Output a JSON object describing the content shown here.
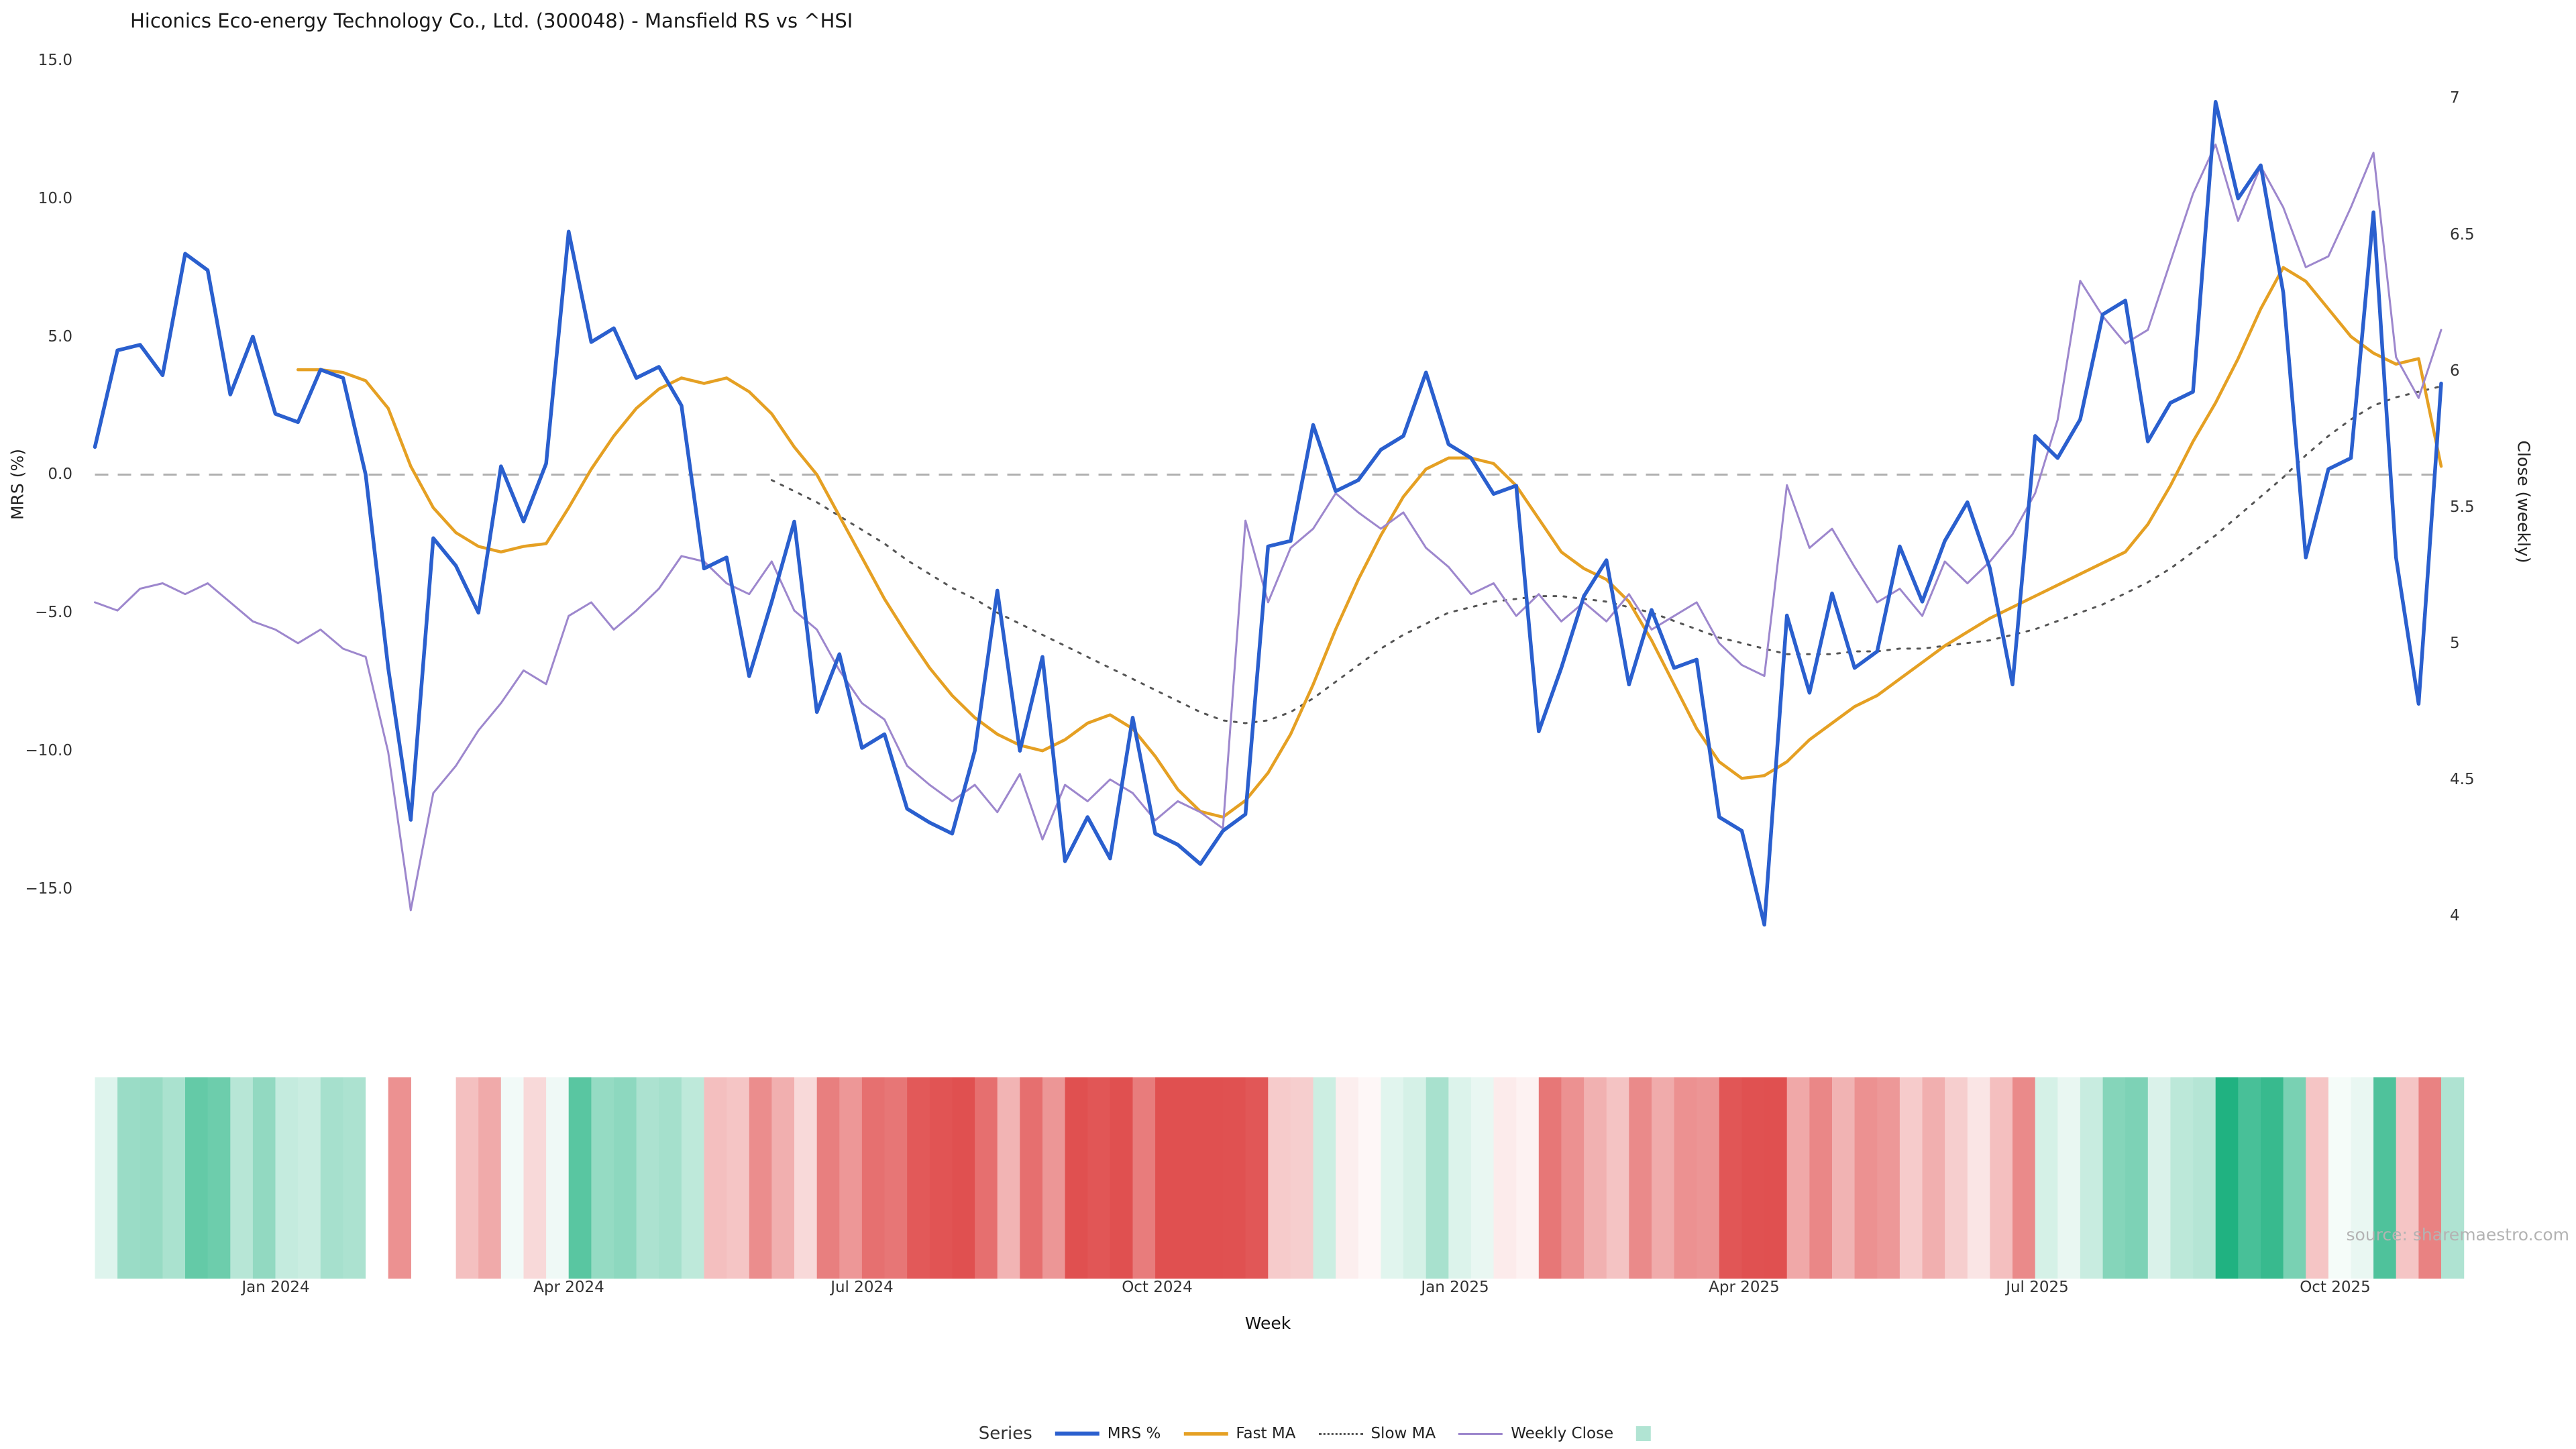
{
  "title": "Hiconics Eco-energy Technology Co., Ltd. (300048) - Mansfield RS vs ^HSI",
  "source": "source: sharemaestro.com",
  "axes": {
    "left_label": "MRS (%)",
    "right_label": "Close (weekly)",
    "x_label": "Week",
    "left_ticks": [
      "15.0",
      "10.0",
      "5.0",
      "0.0",
      "−5.0",
      "−10.0",
      "−15.0"
    ],
    "right_ticks": [
      "7",
      "6.5",
      "6",
      "5.5",
      "5",
      "4.5",
      "4"
    ]
  },
  "legend": {
    "title": "Series",
    "items": [
      {
        "label": "MRS %",
        "color": "#2a5fce",
        "style": "solid",
        "width": 6
      },
      {
        "label": "Fast MA",
        "color": "#e5a023",
        "style": "solid",
        "width": 5
      },
      {
        "label": "Slow MA",
        "color": "#555555",
        "style": "dotted",
        "width": 3
      },
      {
        "label": "Weekly Close",
        "color": "#9d87cd",
        "style": "solid",
        "width": 3
      },
      {
        "label": "",
        "color": "#b1e4d3",
        "style": "square",
        "width": 0
      }
    ]
  },
  "chart_data": {
    "type": "line",
    "title": "Hiconics Eco-energy Technology Co., Ltd. (300048) - Mansfield RS vs ^HSI",
    "xlabel": "Week",
    "x_start_date": "2023-11-06",
    "x_interval": "weekly",
    "n_weeks": 105,
    "x_ticks": [
      {
        "i": 8,
        "label": "Jan 2024"
      },
      {
        "i": 21,
        "label": "Apr 2024"
      },
      {
        "i": 34,
        "label": "Jul 2024"
      },
      {
        "i": 47.1,
        "label": "Oct 2024"
      },
      {
        "i": 60.3,
        "label": "Jan 2025"
      },
      {
        "i": 73.1,
        "label": "Apr 2025"
      },
      {
        "i": 86.1,
        "label": "Jul 2025"
      },
      {
        "i": 99.3,
        "label": "Oct 2025"
      }
    ],
    "left_axis": {
      "label": "MRS (%)",
      "tick_values": [
        15,
        10,
        5,
        0,
        -5,
        -10,
        -15
      ],
      "range": [
        -17.5,
        16.5
      ]
    },
    "right_axis": {
      "label": "Close (weekly)",
      "tick_values": [
        7,
        6.5,
        6,
        5.5,
        5,
        4.5,
        4
      ],
      "range": [
        3.95,
        7.1
      ]
    },
    "zero_baseline": 0,
    "grid": false,
    "legend_position": "bottom",
    "series": [
      {
        "name": "MRS %",
        "axis": "left",
        "color": "#2a5fce",
        "width": 5.5,
        "values": [
          1.0,
          4.5,
          4.7,
          3.6,
          8.0,
          7.4,
          2.9,
          5.0,
          2.2,
          1.9,
          3.8,
          3.5,
          0.0,
          -7.0,
          -12.5,
          -2.3,
          -3.3,
          -5.0,
          0.3,
          -1.7,
          0.4,
          8.8,
          4.8,
          5.3,
          3.5,
          3.9,
          2.5,
          -3.4,
          -3.0,
          -7.3,
          -4.6,
          -1.7,
          -8.6,
          -6.5,
          -9.9,
          -9.4,
          -12.1,
          -12.6,
          -13.0,
          -10.0,
          -4.2,
          -10.0,
          -6.6,
          -14.0,
          -12.4,
          -13.9,
          -8.8,
          -13.0,
          -13.4,
          -14.1,
          -12.9,
          -12.3,
          -2.6,
          -2.4,
          1.8,
          -0.6,
          -0.2,
          0.9,
          1.4,
          3.7,
          1.1,
          0.6,
          -0.7,
          -0.4,
          -9.3,
          -7.0,
          -4.4,
          -3.1,
          -7.6,
          -4.9,
          -7.0,
          -6.7,
          -12.4,
          -12.9,
          -16.3,
          -5.1,
          -7.9,
          -4.3,
          -7.0,
          -6.4,
          -2.6,
          -4.6,
          -2.4,
          -1.0,
          -3.4,
          -7.6,
          1.4,
          0.6,
          2.0,
          5.8,
          6.3,
          1.2,
          2.6,
          3.0,
          13.5,
          10.0,
          11.2,
          6.6,
          -3.0,
          0.2,
          0.6,
          9.5,
          -3.0,
          -8.3,
          3.3
        ]
      },
      {
        "name": "Fast MA",
        "axis": "left",
        "color": "#e5a023",
        "width": 4.5,
        "values": [
          null,
          null,
          null,
          null,
          null,
          null,
          null,
          null,
          null,
          3.8,
          3.8,
          3.7,
          3.4,
          2.4,
          0.3,
          -1.2,
          -2.1,
          -2.6,
          -2.8,
          -2.6,
          -2.5,
          -1.2,
          0.2,
          1.4,
          2.4,
          3.1,
          3.5,
          3.3,
          3.5,
          3.0,
          2.2,
          1.0,
          0.0,
          -1.5,
          -3.0,
          -4.5,
          -5.8,
          -7.0,
          -8.0,
          -8.8,
          -9.4,
          -9.8,
          -10.0,
          -9.6,
          -9.0,
          -8.7,
          -9.2,
          -10.2,
          -11.4,
          -12.2,
          -12.4,
          -11.8,
          -10.8,
          -9.4,
          -7.6,
          -5.6,
          -3.8,
          -2.2,
          -0.8,
          0.2,
          0.6,
          0.6,
          0.4,
          -0.4,
          -1.6,
          -2.8,
          -3.4,
          -3.8,
          -4.6,
          -6.0,
          -7.6,
          -9.2,
          -10.4,
          -11.0,
          -10.9,
          -10.4,
          -9.6,
          -9.0,
          -8.4,
          -8.0,
          -7.4,
          -6.8,
          -6.2,
          -5.7,
          -5.2,
          -4.8,
          -4.4,
          -4.0,
          -3.6,
          -3.2,
          -2.8,
          -1.8,
          -0.4,
          1.2,
          2.6,
          4.2,
          6.0,
          7.5,
          7.0,
          6.0,
          5.0,
          4.4,
          4.0,
          4.2,
          0.3
        ]
      },
      {
        "name": "Slow MA",
        "axis": "left",
        "color": "#555555",
        "width": 3,
        "dash": "4 11",
        "values": [
          null,
          null,
          null,
          null,
          null,
          null,
          null,
          null,
          null,
          null,
          null,
          null,
          null,
          null,
          null,
          null,
          null,
          null,
          null,
          null,
          null,
          null,
          null,
          null,
          null,
          null,
          null,
          null,
          null,
          null,
          -0.2,
          -0.6,
          -1.0,
          -1.5,
          -2.0,
          -2.5,
          -3.1,
          -3.6,
          -4.1,
          -4.5,
          -5.0,
          -5.4,
          -5.8,
          -6.2,
          -6.6,
          -7.0,
          -7.4,
          -7.8,
          -8.2,
          -8.6,
          -8.9,
          -9.0,
          -8.9,
          -8.6,
          -8.1,
          -7.5,
          -6.9,
          -6.3,
          -5.8,
          -5.4,
          -5.0,
          -4.8,
          -4.6,
          -4.5,
          -4.4,
          -4.4,
          -4.5,
          -4.6,
          -4.8,
          -5.0,
          -5.3,
          -5.6,
          -5.9,
          -6.1,
          -6.3,
          -6.5,
          -6.5,
          -6.5,
          -6.4,
          -6.4,
          -6.3,
          -6.3,
          -6.2,
          -6.1,
          -6.0,
          -5.8,
          -5.6,
          -5.3,
          -5.0,
          -4.7,
          -4.3,
          -3.9,
          -3.4,
          -2.8,
          -2.2,
          -1.5,
          -0.8,
          -0.1,
          0.7,
          1.4,
          2.0,
          2.5,
          2.8,
          3.0,
          3.2
        ]
      },
      {
        "name": "Weekly Close",
        "axis": "right",
        "color": "#9d87cd",
        "width": 3,
        "values": [
          5.15,
          5.12,
          5.2,
          5.22,
          5.18,
          5.22,
          5.15,
          5.08,
          5.05,
          5.0,
          5.05,
          4.98,
          4.95,
          4.6,
          4.02,
          4.45,
          4.55,
          4.68,
          4.78,
          4.9,
          4.85,
          5.1,
          5.15,
          5.05,
          5.12,
          5.2,
          5.32,
          5.3,
          5.22,
          5.18,
          5.3,
          5.12,
          5.05,
          4.9,
          4.78,
          4.72,
          4.55,
          4.48,
          4.42,
          4.48,
          4.38,
          4.52,
          4.28,
          4.48,
          4.42,
          4.5,
          4.45,
          4.35,
          4.42,
          4.38,
          4.32,
          5.45,
          5.15,
          5.35,
          5.42,
          5.55,
          5.48,
          5.42,
          5.48,
          5.35,
          5.28,
          5.18,
          5.22,
          5.1,
          5.18,
          5.08,
          5.15,
          5.08,
          5.18,
          5.05,
          5.1,
          5.15,
          5.0,
          4.92,
          4.88,
          5.58,
          5.35,
          5.42,
          5.28,
          5.15,
          5.2,
          5.1,
          5.3,
          5.22,
          5.3,
          5.4,
          5.55,
          5.82,
          6.33,
          6.2,
          6.1,
          6.15,
          6.4,
          6.65,
          6.83,
          6.55,
          6.75,
          6.6,
          6.38,
          6.42,
          6.6,
          6.8,
          6.05,
          5.9,
          6.15
        ]
      }
    ],
    "heatmap": {
      "based_on": "MRS %",
      "gap_weeks": [
        14,
        15
      ],
      "positive_color": "#20b281",
      "negative_color": "#e05050"
    }
  }
}
